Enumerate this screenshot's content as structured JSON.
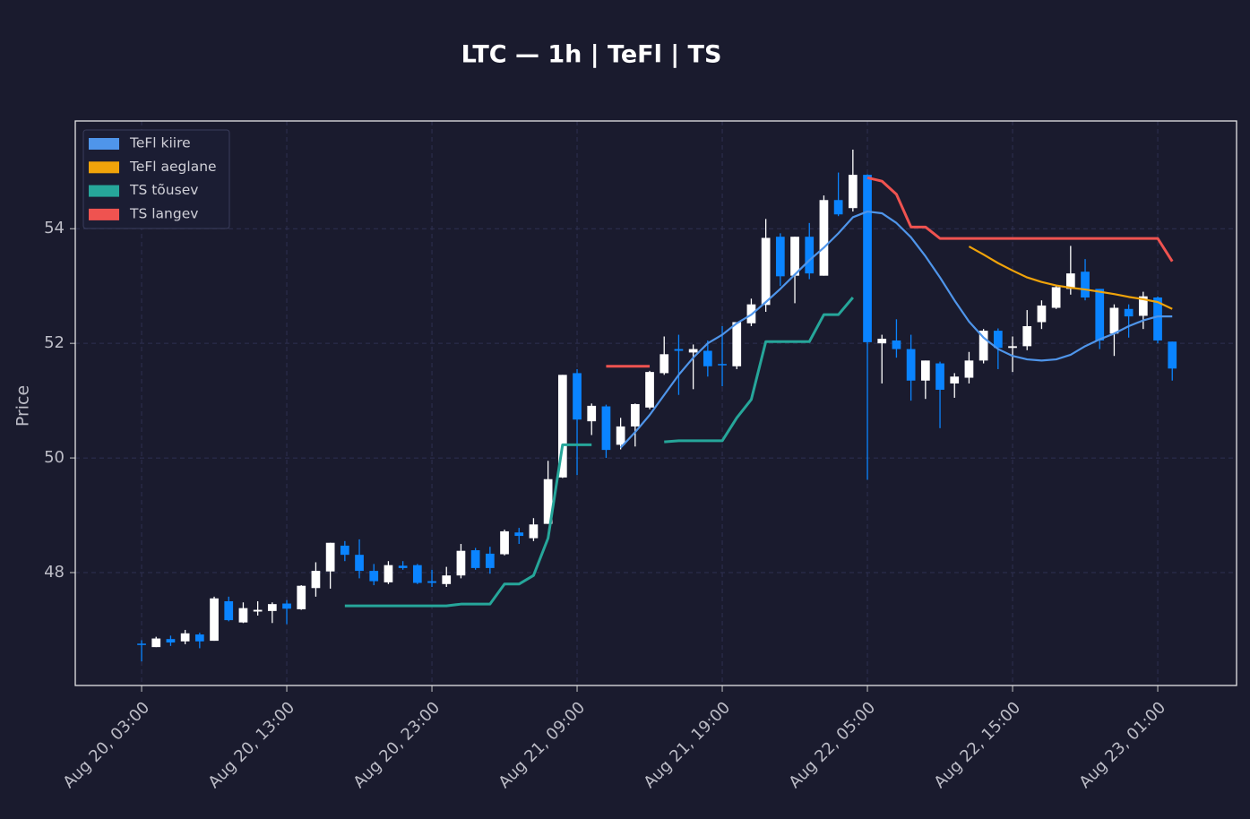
{
  "chart_data": {
    "type": "candlestick",
    "title": "LTC — 1h  |  TeFl  |  TS",
    "ylabel": "Price",
    "categories": [
      "Aug 20, 03:00",
      null,
      null,
      null,
      null,
      null,
      null,
      null,
      null,
      null,
      "Aug 20, 13:00",
      null,
      null,
      null,
      null,
      null,
      null,
      null,
      null,
      null,
      "Aug 20, 23:00",
      null,
      null,
      null,
      null,
      null,
      null,
      null,
      null,
      null,
      "Aug 21, 09:00",
      null,
      null,
      null,
      null,
      null,
      null,
      null,
      null,
      null,
      "Aug 21, 19:00",
      null,
      null,
      null,
      null,
      null,
      null,
      null,
      null,
      null,
      "Aug 22, 05:00",
      null,
      null,
      null,
      null,
      null,
      null,
      null,
      null,
      null,
      "Aug 22, 15:00",
      null,
      null,
      null,
      null,
      null,
      null,
      null,
      null,
      null,
      "Aug 23, 01:00",
      null
    ],
    "open": [
      46.76,
      46.7,
      46.84,
      46.8,
      46.92,
      46.81,
      47.5,
      47.13,
      47.32,
      47.33,
      47.46,
      47.36,
      47.73,
      48.02,
      48.47,
      48.31,
      48.03,
      47.83,
      48.12,
      48.13,
      47.85,
      47.8,
      47.95,
      48.39,
      48.33,
      48.32,
      48.7,
      48.6,
      48.85,
      49.66,
      51.48,
      50.64,
      50.9,
      50.23,
      50.55,
      50.88,
      51.48,
      51.9,
      51.84,
      51.87,
      51.64,
      51.6,
      52.35,
      52.67,
      53.86,
      53.18,
      53.86,
      53.18,
      54.5,
      54.36,
      54.94,
      52.0,
      52.05,
      51.9,
      51.35,
      51.65,
      51.3,
      51.4,
      51.7,
      52.22,
      51.92,
      51.95,
      52.37,
      52.62,
      52.95,
      53.25,
      52.95,
      52.17,
      52.6,
      52.48,
      52.8,
      52.03
    ],
    "high": [
      46.82,
      46.88,
      46.9,
      47.0,
      46.95,
      47.58,
      47.58,
      47.48,
      47.5,
      47.48,
      47.52,
      47.78,
      48.18,
      48.52,
      48.55,
      48.58,
      48.15,
      48.2,
      48.2,
      48.15,
      48.05,
      48.1,
      48.5,
      48.43,
      48.45,
      48.75,
      48.78,
      48.95,
      49.95,
      51.45,
      51.55,
      50.95,
      50.93,
      50.7,
      50.95,
      51.52,
      52.12,
      52.15,
      51.98,
      52.05,
      52.3,
      52.37,
      52.78,
      54.17,
      53.92,
      53.86,
      54.1,
      54.58,
      54.98,
      55.38,
      54.95,
      52.15,
      52.42,
      52.15,
      51.7,
      51.68,
      51.48,
      51.85,
      52.25,
      52.26,
      52.12,
      52.58,
      52.75,
      53.0,
      53.7,
      53.47,
      52.95,
      52.68,
      52.68,
      52.9,
      52.82,
      52.03
    ],
    "low": [
      46.45,
      46.7,
      46.72,
      46.75,
      46.68,
      46.81,
      47.15,
      47.12,
      47.25,
      47.12,
      47.1,
      47.35,
      47.58,
      47.72,
      48.2,
      47.9,
      47.78,
      47.8,
      48.05,
      47.8,
      47.75,
      47.75,
      47.9,
      48.05,
      47.98,
      48.3,
      48.5,
      48.55,
      48.85,
      49.65,
      49.7,
      50.4,
      50.0,
      50.15,
      50.2,
      50.85,
      51.45,
      51.1,
      51.2,
      51.42,
      51.25,
      51.55,
      52.3,
      52.55,
      53.0,
      52.7,
      53.12,
      53.18,
      54.22,
      54.3,
      49.62,
      51.3,
      51.75,
      51.0,
      51.03,
      50.52,
      51.05,
      51.3,
      51.65,
      51.55,
      51.5,
      51.88,
      52.25,
      52.6,
      52.85,
      52.75,
      51.9,
      51.78,
      52.1,
      52.25,
      52.0,
      51.35
    ],
    "close": [
      46.74,
      46.85,
      46.78,
      46.94,
      46.8,
      47.55,
      47.17,
      47.38,
      47.35,
      47.45,
      47.37,
      47.77,
      48.03,
      48.52,
      48.31,
      48.03,
      47.85,
      48.13,
      48.08,
      47.82,
      47.82,
      47.95,
      48.38,
      48.08,
      48.08,
      48.72,
      48.64,
      48.84,
      49.63,
      51.45,
      50.67,
      50.91,
      50.14,
      50.55,
      50.94,
      51.5,
      51.81,
      51.87,
      51.9,
      51.6,
      51.62,
      52.37,
      52.68,
      53.84,
      53.17,
      53.86,
      53.22,
      54.5,
      54.25,
      54.94,
      52.02,
      52.08,
      51.9,
      51.35,
      51.7,
      51.19,
      51.42,
      51.7,
      52.22,
      51.92,
      51.95,
      52.3,
      52.66,
      52.98,
      53.22,
      52.8,
      52.05,
      52.62,
      52.47,
      52.82,
      52.05,
      51.56
    ],
    "up_color": "#ffffff",
    "down_color": "#0a84ff",
    "series": [
      {
        "name": "TeFl kiire",
        "color": "#4f95ea",
        "values": [
          null,
          null,
          null,
          null,
          null,
          null,
          null,
          null,
          null,
          null,
          null,
          null,
          null,
          null,
          null,
          null,
          null,
          null,
          null,
          null,
          null,
          null,
          null,
          null,
          null,
          null,
          null,
          null,
          null,
          null,
          null,
          null,
          null,
          50.18,
          50.45,
          50.75,
          51.1,
          51.45,
          51.75,
          52.0,
          52.15,
          52.35,
          52.5,
          52.72,
          52.95,
          53.2,
          53.45,
          53.67,
          53.92,
          54.2,
          54.3,
          54.27,
          54.1,
          53.85,
          53.52,
          53.15,
          52.75,
          52.38,
          52.1,
          51.9,
          51.78,
          51.72,
          51.7,
          51.72,
          51.8,
          51.95,
          52.07,
          52.17,
          52.3,
          52.4,
          52.47,
          52.47
        ]
      },
      {
        "name": "TeFl aeglane",
        "color": "#f0a30a",
        "values": [
          null,
          null,
          null,
          null,
          null,
          null,
          null,
          null,
          null,
          null,
          null,
          null,
          null,
          null,
          null,
          null,
          null,
          null,
          null,
          null,
          null,
          null,
          null,
          null,
          null,
          null,
          null,
          null,
          null,
          null,
          null,
          null,
          null,
          null,
          null,
          null,
          null,
          null,
          null,
          null,
          null,
          null,
          null,
          null,
          null,
          null,
          null,
          null,
          null,
          null,
          null,
          null,
          null,
          null,
          null,
          null,
          null,
          53.69,
          53.55,
          53.4,
          53.27,
          53.15,
          53.07,
          53.01,
          52.97,
          52.94,
          52.9,
          52.86,
          52.81,
          52.77,
          52.72,
          52.6
        ]
      },
      {
        "name": "TS tõusev",
        "color": "#26a69a",
        "values": [
          null,
          null,
          null,
          null,
          null,
          null,
          null,
          null,
          null,
          null,
          null,
          null,
          null,
          null,
          47.42,
          47.42,
          47.42,
          47.42,
          47.42,
          47.42,
          47.42,
          47.42,
          47.45,
          47.45,
          47.45,
          47.8,
          47.8,
          47.95,
          48.6,
          50.23,
          50.23,
          50.23,
          null,
          null,
          null,
          null,
          50.28,
          50.3,
          50.3,
          50.3,
          50.3,
          50.7,
          51.02,
          52.03,
          52.03,
          52.03,
          52.03,
          52.5,
          52.5,
          52.8,
          null,
          null,
          null,
          null,
          null,
          null,
          null,
          null,
          null,
          null,
          null,
          null,
          null,
          null,
          null,
          null,
          null,
          null,
          null,
          null,
          null,
          null
        ]
      },
      {
        "name": "TS langev",
        "color": "#ef5350",
        "values": [
          null,
          null,
          null,
          null,
          null,
          null,
          null,
          null,
          null,
          null,
          null,
          null,
          null,
          null,
          null,
          null,
          null,
          null,
          null,
          null,
          null,
          null,
          null,
          null,
          null,
          null,
          null,
          null,
          null,
          null,
          null,
          null,
          51.6,
          51.6,
          51.6,
          51.6,
          null,
          null,
          null,
          null,
          null,
          null,
          null,
          null,
          null,
          null,
          null,
          null,
          null,
          null,
          54.89,
          54.83,
          54.6,
          54.03,
          54.03,
          53.83,
          53.83,
          53.83,
          53.83,
          53.83,
          53.83,
          53.83,
          53.83,
          53.83,
          53.83,
          53.83,
          53.83,
          53.83,
          53.83,
          53.83,
          53.83,
          53.43
        ]
      }
    ],
    "xlim": [
      -4.57,
      75.43
    ],
    "ylim": [
      46.03,
      55.88
    ],
    "yticks": [
      48,
      50,
      52,
      54
    ],
    "grid": true,
    "legend": "upper left"
  }
}
